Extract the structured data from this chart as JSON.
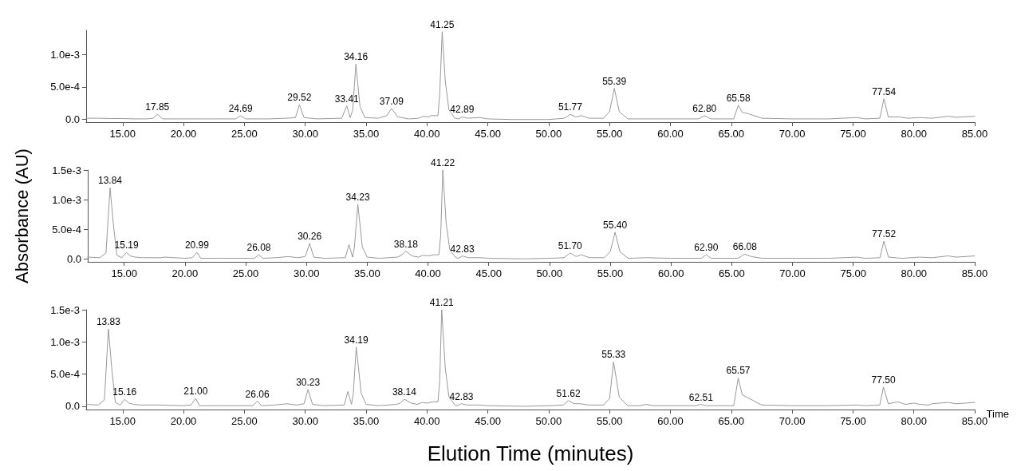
{
  "chart_data": [
    {
      "type": "line",
      "xlim": [
        12,
        85
      ],
      "ylim": [
        -4e-05,
        0.00137
      ],
      "xticks": [
        {
          "value": 15,
          "label": "15.00"
        },
        {
          "value": 20,
          "label": "20.00"
        },
        {
          "value": 25,
          "label": "25.00"
        },
        {
          "value": 30,
          "label": "30.00"
        },
        {
          "value": 35,
          "label": "35.00"
        },
        {
          "value": 40,
          "label": "40.00"
        },
        {
          "value": 45,
          "label": "45.00"
        },
        {
          "value": 50,
          "label": "50.00"
        },
        {
          "value": 55,
          "label": "55.00"
        },
        {
          "value": 60,
          "label": "60.00"
        },
        {
          "value": 65,
          "label": "65.00"
        },
        {
          "value": 70,
          "label": "70.00"
        },
        {
          "value": 75,
          "label": "75.00"
        },
        {
          "value": 80,
          "label": "80.00"
        },
        {
          "value": 85,
          "label": "85.00"
        }
      ],
      "yticks": [
        {
          "value": 0,
          "label": "0.0"
        },
        {
          "value": 0.0005,
          "label": "5.0e-4"
        },
        {
          "value": 0.001,
          "label": "1.0e-3"
        }
      ],
      "grid": false,
      "marker": "none",
      "line_style": "solid",
      "series": [
        {
          "color": "#999999",
          "x": [
            12,
            13,
            14,
            15,
            16,
            17,
            17.5,
            17.85,
            18.3,
            20,
            22,
            24.3,
            24.69,
            25.1,
            27,
            28.5,
            29.2,
            29.52,
            29.9,
            31,
            33,
            33.41,
            33.7,
            33.9,
            34.16,
            34.5,
            34.9,
            36,
            36.7,
            37.09,
            37.6,
            38.5,
            39.3,
            39.7,
            40.2,
            40.3,
            40.9,
            41.05,
            41.25,
            41.5,
            41.8,
            42.3,
            42.6,
            42.89,
            43.3,
            44.3,
            45,
            47,
            50,
            51.3,
            51.77,
            52.2,
            52.7,
            53.3,
            54.5,
            55,
            55.39,
            55.8,
            56.5,
            58,
            60,
            62.3,
            62.8,
            63.3,
            65.2,
            65.58,
            65.9,
            66.4,
            67.5,
            70,
            73,
            75.3,
            76,
            77.2,
            77.54,
            77.9,
            78.8,
            79.5,
            80.5,
            81.5,
            82.8,
            83.5,
            85
          ],
          "values": [
            2e-05,
            2e-05,
            1.5e-05,
            1.5e-05,
            1e-05,
            1e-05,
            2e-05,
            8e-05,
            1e-05,
            1e-05,
            1e-05,
            1e-05,
            6e-05,
            1e-05,
            1e-05,
            2e-05,
            3e-05,
            0.00023,
            3e-05,
            1e-05,
            2e-05,
            0.00021,
            3e-05,
            0.00015,
            0.00085,
            0.0002,
            3e-05,
            2e-05,
            6e-05,
            0.00017,
            4e-05,
            1e-05,
            2e-05,
            5e-05,
            4e-05,
            6e-05,
            6e-05,
            0.0004,
            0.00135,
            0.0006,
            0.00015,
            2e-05,
            1e-05,
            4e-05,
            2e-05,
            3e-05,
            1e-05,
            0,
            0,
            2e-05,
            8e-05,
            4e-05,
            6e-05,
            2e-05,
            2e-05,
            0.00012,
            0.00048,
            0.00012,
            1e-05,
            1e-05,
            1e-05,
            1e-05,
            6e-05,
            1e-05,
            1e-05,
            0.00022,
            0.00011,
            9e-05,
            2e-05,
            1e-05,
            1e-05,
            3e-05,
            1e-05,
            2e-05,
            0.00032,
            4e-05,
            4e-05,
            2e-05,
            3e-05,
            2e-05,
            5e-05,
            3.5e-05,
            5e-05
          ]
        }
      ],
      "annotations": [
        {
          "text": "17.85",
          "x": 17.85,
          "y": 8e-05
        },
        {
          "text": "24.69",
          "x": 24.69,
          "y": 6e-05
        },
        {
          "text": "29.52",
          "x": 29.52,
          "y": 0.00023
        },
        {
          "text": "33.41",
          "x": 33.41,
          "y": 0.00021
        },
        {
          "text": "34.16",
          "x": 34.16,
          "y": 0.00085
        },
        {
          "text": "37.09",
          "x": 37.09,
          "y": 0.00017
        },
        {
          "text": "41.25",
          "x": 41.25,
          "y": 0.00135
        },
        {
          "text": "42.89",
          "x": 42.89,
          "y": 4e-05
        },
        {
          "text": "51.77",
          "x": 51.77,
          "y": 8e-05
        },
        {
          "text": "55.39",
          "x": 55.39,
          "y": 0.00048
        },
        {
          "text": "62.80",
          "x": 62.8,
          "y": 6e-05
        },
        {
          "text": "65.58",
          "x": 65.58,
          "y": 0.00022
        },
        {
          "text": "77.54",
          "x": 77.54,
          "y": 0.00032
        }
      ]
    },
    {
      "type": "line",
      "ylabel": "Absorbance (AU)",
      "xlim": [
        12,
        85
      ],
      "ylim": [
        -5e-05,
        0.0015
      ],
      "xticks": [
        {
          "value": 15,
          "label": "15.00"
        },
        {
          "value": 20,
          "label": "20.00"
        },
        {
          "value": 25,
          "label": "25.00"
        },
        {
          "value": 30,
          "label": "30.00"
        },
        {
          "value": 35,
          "label": "35.00"
        },
        {
          "value": 40,
          "label": "40.00"
        },
        {
          "value": 45,
          "label": "45.00"
        },
        {
          "value": 50,
          "label": "50.00"
        },
        {
          "value": 55,
          "label": "55.00"
        },
        {
          "value": 60,
          "label": "60.00"
        },
        {
          "value": 65,
          "label": "65.00"
        },
        {
          "value": 70,
          "label": "70.00"
        },
        {
          "value": 75,
          "label": "75.00"
        },
        {
          "value": 80,
          "label": "80.00"
        },
        {
          "value": 85,
          "label": "85.00"
        }
      ],
      "yticks": [
        {
          "value": 0,
          "label": "0.0"
        },
        {
          "value": 0.0005,
          "label": "5.0e-4"
        },
        {
          "value": 0.001,
          "label": "1.0e-3"
        },
        {
          "value": 0.0015,
          "label": "1.5e-3"
        }
      ],
      "grid": false,
      "marker": "none",
      "line_style": "solid",
      "series": [
        {
          "color": "#999999",
          "x": [
            12,
            13,
            13.5,
            13.84,
            14.1,
            14.4,
            14.8,
            15.19,
            15.5,
            15.9,
            16.5,
            18,
            18.3,
            20,
            20.6,
            20.99,
            21.3,
            23,
            25.7,
            26.08,
            26.4,
            27.5,
            28.5,
            29.3,
            29.9,
            30.26,
            30.6,
            31.5,
            33.2,
            33.5,
            33.8,
            33.95,
            34.23,
            34.6,
            35,
            36,
            37.5,
            37.8,
            38.18,
            38.7,
            39.2,
            39.6,
            40,
            40.5,
            40.9,
            41.05,
            41.22,
            41.5,
            41.8,
            42.3,
            42.5,
            42.83,
            43.3,
            44.3,
            45,
            48,
            50,
            51.2,
            51.7,
            52.2,
            52.6,
            53.3,
            54.5,
            55,
            55.4,
            55.8,
            56.5,
            58,
            60,
            62.5,
            62.9,
            63.3,
            65.5,
            66.08,
            66.6,
            67.5,
            70,
            73,
            75.3,
            76,
            77.2,
            77.52,
            77.9,
            79,
            80.5,
            81.5,
            82.8,
            83.5,
            85
          ],
          "values": [
            3e-05,
            2e-05,
            0.0001,
            0.0012,
            0.0006,
            6e-05,
            2e-05,
            0.00011,
            5e-05,
            3e-05,
            2e-05,
            2e-05,
            3e-05,
            1e-05,
            2e-05,
            0.00011,
            1e-05,
            1e-05,
            1e-05,
            7e-05,
            1e-05,
            2e-05,
            4e-05,
            2e-05,
            4e-05,
            0.00026,
            3e-05,
            1e-05,
            2e-05,
            0.00024,
            3e-05,
            0.0002,
            0.00092,
            0.0002,
            3e-05,
            1e-05,
            3e-05,
            6e-05,
            0.00013,
            5e-05,
            3e-05,
            6e-05,
            5e-05,
            7e-05,
            7e-05,
            0.0004,
            0.0015,
            0.0006,
            0.00015,
            2e-05,
            1e-05,
            5e-05,
            2e-05,
            2e-05,
            1e-05,
            0,
            1e-05,
            2e-05,
            0.0001,
            4e-05,
            7e-05,
            2e-05,
            2e-05,
            0.00012,
            0.00045,
            0.00012,
            1e-05,
            2e-05,
            1e-05,
            1e-05,
            7e-05,
            1e-05,
            1e-05,
            8e-05,
            4e-05,
            1e-05,
            1e-05,
            1e-05,
            3e-05,
            1e-05,
            2e-05,
            0.0003,
            3e-05,
            1e-05,
            3e-05,
            2e-05,
            5e-05,
            3e-05,
            5e-05
          ]
        }
      ],
      "annotations": [
        {
          "text": "13.84",
          "x": 13.84,
          "y": 0.0012
        },
        {
          "text": "15.19",
          "x": 15.19,
          "y": 0.00011
        },
        {
          "text": "20.99",
          "x": 20.99,
          "y": 0.00011
        },
        {
          "text": "26.08",
          "x": 26.08,
          "y": 7e-05
        },
        {
          "text": "30.26",
          "x": 30.26,
          "y": 0.00026
        },
        {
          "text": "34.23",
          "x": 34.23,
          "y": 0.00092
        },
        {
          "text": "38.18",
          "x": 38.18,
          "y": 0.00013
        },
        {
          "text": "41.22",
          "x": 41.22,
          "y": 0.0015
        },
        {
          "text": "42.83",
          "x": 42.83,
          "y": 5e-05
        },
        {
          "text": "51.70",
          "x": 51.7,
          "y": 0.0001
        },
        {
          "text": "55.40",
          "x": 55.4,
          "y": 0.00045
        },
        {
          "text": "62.90",
          "x": 62.9,
          "y": 7e-05
        },
        {
          "text": "66.08",
          "x": 66.08,
          "y": 8e-05
        },
        {
          "text": "77.52",
          "x": 77.52,
          "y": 0.0003
        }
      ]
    },
    {
      "type": "line",
      "xlabel": "Elution Time (minutes)",
      "xlim": [
        12,
        85
      ],
      "ylim": [
        -5e-05,
        0.0015
      ],
      "xticks": [
        {
          "value": 15,
          "label": "15.00"
        },
        {
          "value": 20,
          "label": "20.00"
        },
        {
          "value": 25,
          "label": "25.00"
        },
        {
          "value": 30,
          "label": "30.00"
        },
        {
          "value": 35,
          "label": "35.00"
        },
        {
          "value": 40,
          "label": "40.00"
        },
        {
          "value": 45,
          "label": "45.00"
        },
        {
          "value": 50,
          "label": "50.00"
        },
        {
          "value": 55,
          "label": "55.00"
        },
        {
          "value": 60,
          "label": "60.00"
        },
        {
          "value": 65,
          "label": "65.00"
        },
        {
          "value": 70,
          "label": "70.00"
        },
        {
          "value": 75,
          "label": "75.00"
        },
        {
          "value": 80,
          "label": "80.00"
        },
        {
          "value": 85,
          "label": "85.00"
        }
      ],
      "yticks": [
        {
          "value": 0,
          "label": "0.0"
        },
        {
          "value": 0.0005,
          "label": "5.0e-4"
        },
        {
          "value": 0.001,
          "label": "1.0e-3"
        },
        {
          "value": 0.0015,
          "label": "1.5e-3"
        }
      ],
      "grid": false,
      "marker": "none",
      "line_style": "solid",
      "series": [
        {
          "color": "#999999",
          "x": [
            12,
            13,
            13.5,
            13.83,
            14.1,
            14.4,
            14.8,
            15.16,
            15.5,
            15.9,
            16.5,
            18,
            20,
            20.6,
            21,
            21.3,
            23,
            25.7,
            26.06,
            26.4,
            27.5,
            28.5,
            29.3,
            29.9,
            30.23,
            30.6,
            31.5,
            33.2,
            33.5,
            33.8,
            33.95,
            34.19,
            34.6,
            35,
            36,
            37.5,
            37.8,
            38.14,
            38.7,
            39.2,
            39.6,
            40,
            40.5,
            40.9,
            41.05,
            41.21,
            41.5,
            41.8,
            42.3,
            42.5,
            42.83,
            43.3,
            44.3,
            45,
            48,
            50,
            51.2,
            51.62,
            52.1,
            52.6,
            53.3,
            54.5,
            55,
            55.33,
            55.8,
            56.5,
            57.5,
            58,
            58.6,
            60,
            62.1,
            62.51,
            62.9,
            65.2,
            65.57,
            65.9,
            66.3,
            67.5,
            70,
            73,
            75.3,
            76,
            77.2,
            77.5,
            77.9,
            78.7,
            79.3,
            80,
            80.5,
            81.2,
            81.5,
            82.8,
            83.5,
            85
          ],
          "values": [
            3e-05,
            2e-05,
            0.0001,
            0.0012,
            0.0006,
            6e-05,
            2e-05,
            0.00011,
            5e-05,
            3e-05,
            2e-05,
            2e-05,
            1e-05,
            2e-05,
            0.00012,
            1e-05,
            1e-05,
            1e-05,
            8e-05,
            1e-05,
            2e-05,
            4e-05,
            2e-05,
            4e-05,
            0.00026,
            3e-05,
            1e-05,
            2e-05,
            0.00023,
            3e-05,
            0.0002,
            0.00092,
            0.0002,
            3e-05,
            1e-05,
            3e-05,
            5e-05,
            0.00011,
            5e-05,
            3e-05,
            6e-05,
            5e-05,
            7e-05,
            7e-05,
            0.0004,
            0.0015,
            0.0006,
            0.00015,
            2e-05,
            1e-05,
            4e-05,
            2e-05,
            2e-05,
            1e-05,
            0,
            1e-05,
            2e-05,
            9e-05,
            4e-05,
            4e-05,
            2e-05,
            2e-05,
            0.00012,
            0.00069,
            0.00014,
            1e-05,
            1e-05,
            3e-05,
            1e-05,
            1e-05,
            1e-05,
            3e-05,
            1e-05,
            1e-05,
            0.00044,
            0.00018,
            0.00014,
            2e-05,
            1e-05,
            1e-05,
            2e-05,
            1e-05,
            2e-05,
            0.0003,
            4e-05,
            7e-05,
            3e-05,
            5e-05,
            3e-05,
            2e-05,
            4e-05,
            6e-05,
            4e-05,
            6e-05
          ]
        }
      ],
      "annotations": [
        {
          "text": "13.83",
          "x": 13.83,
          "y": 0.0012
        },
        {
          "text": "15.16",
          "x": 15.16,
          "y": 0.00011
        },
        {
          "text": "21.00",
          "x": 21,
          "y": 0.00012
        },
        {
          "text": "26.06",
          "x": 26.06,
          "y": 8e-05
        },
        {
          "text": "30.23",
          "x": 30.23,
          "y": 0.00026
        },
        {
          "text": "34.19",
          "x": 34.19,
          "y": 0.00092
        },
        {
          "text": "38.14",
          "x": 38.14,
          "y": 0.00011
        },
        {
          "text": "41.21",
          "x": 41.21,
          "y": 0.0015
        },
        {
          "text": "42.83",
          "x": 42.83,
          "y": 4e-05
        },
        {
          "text": "51.62",
          "x": 51.62,
          "y": 9e-05
        },
        {
          "text": "55.33",
          "x": 55.33,
          "y": 0.00069
        },
        {
          "text": "62.51",
          "x": 62.51,
          "y": 3e-05
        },
        {
          "text": "65.57",
          "x": 65.57,
          "y": 0.00044
        },
        {
          "text": "77.50",
          "x": 77.5,
          "y": 0.0003
        },
        "Time"
      ]
    }
  ]
}
